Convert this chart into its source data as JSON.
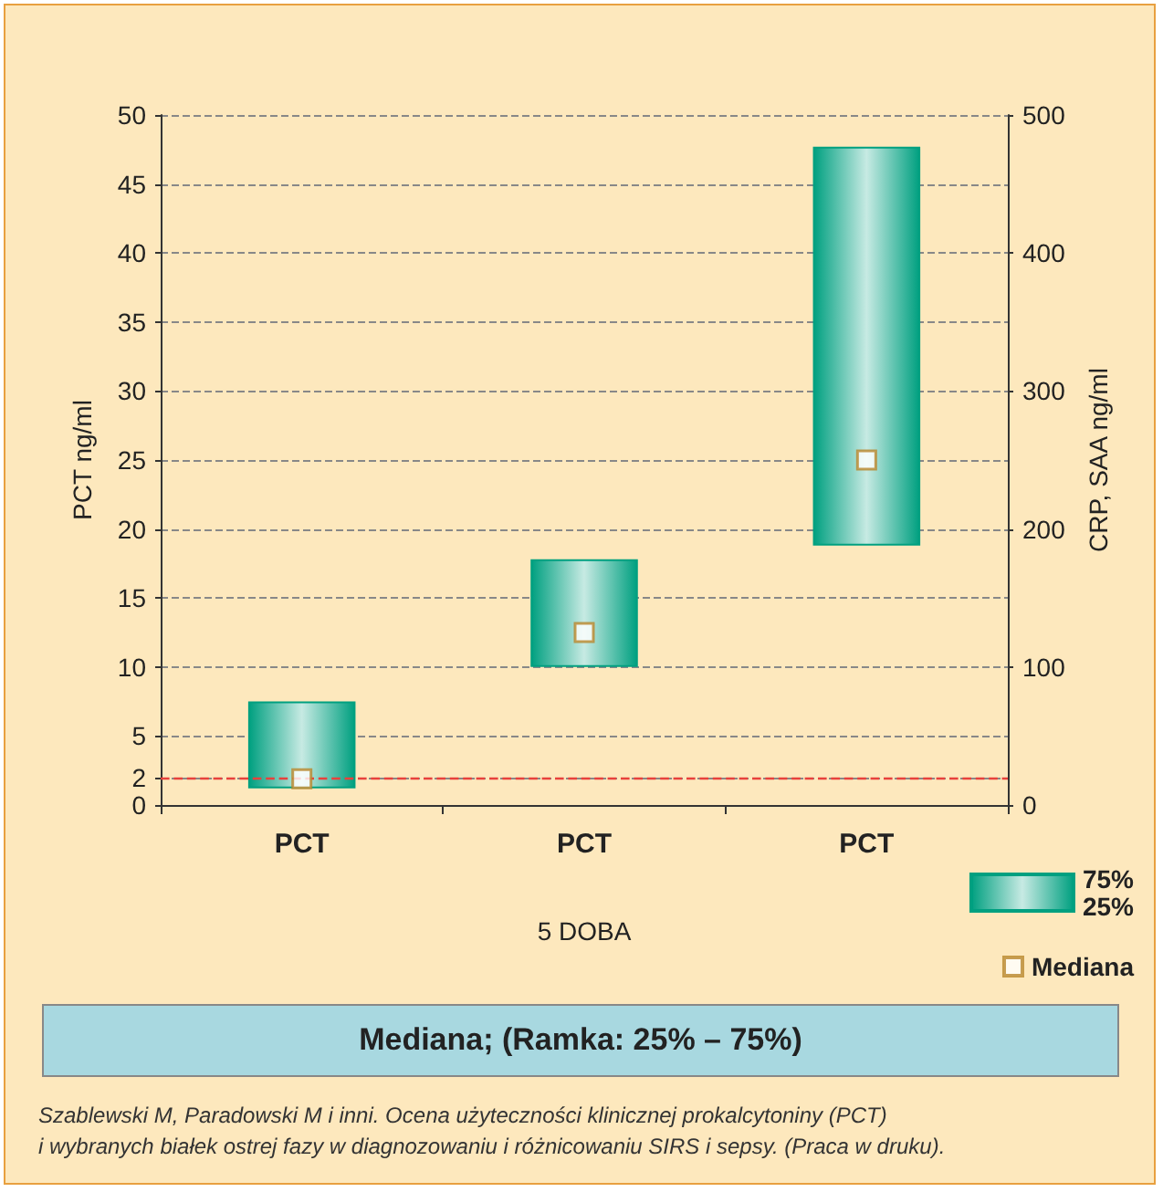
{
  "chart_data": {
    "type": "bar",
    "title": "Mediana; (Ramka: 25% – 75%)",
    "xlabel": "5 DOBA",
    "ylabel": "PCT ng/ml",
    "y2label": "CRP, SAA ng/ml",
    "categories": [
      "PCT",
      "PCT",
      "PCT"
    ],
    "series": [
      {
        "name": "75%\n25%",
        "color": "#00a080",
        "base": [
          1.2,
          10,
          18.8
        ],
        "values": [
          6.3,
          7.8,
          28.9
        ]
      },
      {
        "type": "scatter",
        "name": "Mediana",
        "color": "#ffffff",
        "marker": "square",
        "values": [
          1.9,
          12.5,
          25
        ]
      }
    ],
    "ylim": [
      0,
      50
    ],
    "yticks": [
      0,
      2,
      5,
      10,
      15,
      20,
      25,
      30,
      35,
      40,
      45,
      50
    ],
    "y2lim": [
      0,
      500
    ],
    "y2ticks": [
      0,
      100,
      200,
      300,
      400,
      500
    ],
    "ref_lines": [
      {
        "axis": "y",
        "value": 2,
        "label": null,
        "color": "#e8413c",
        "line_style": "dashed"
      }
    ],
    "grid": "y",
    "legend": "bottom right",
    "annotations": [
      "Szablewski M, Paradowski M i inni. Ocena użyteczności klinicznej prokalcytoniny (PCT)\ni wybranych białek ostrej fazy w diagnozowaniu i różnicowaniu SIRS i sepsy. (Praca w druku)."
    ]
  }
}
